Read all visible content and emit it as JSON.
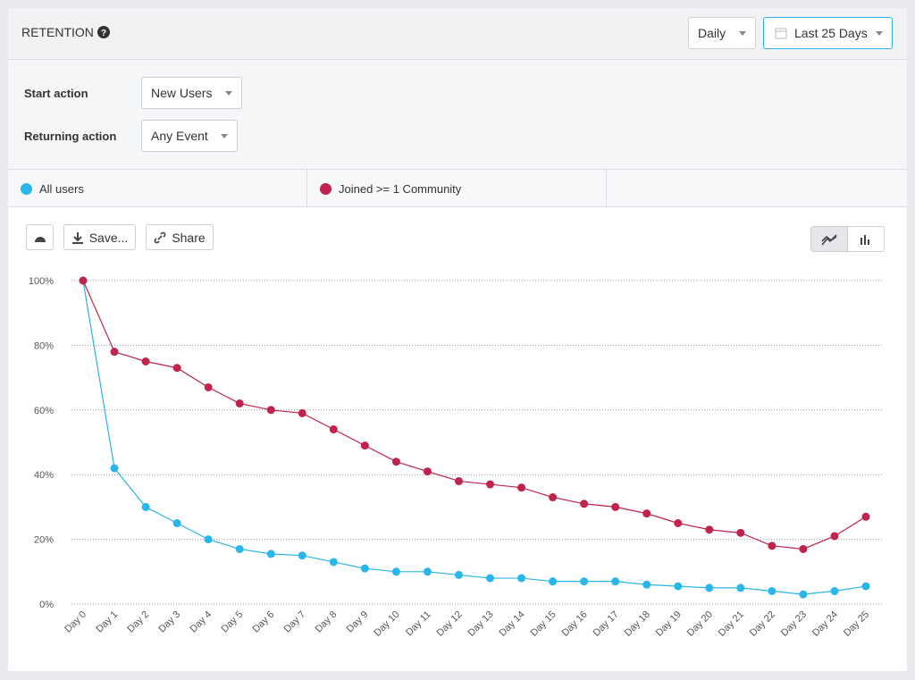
{
  "header": {
    "title": "RETENTION",
    "interval": "Daily",
    "range": "Last 25 Days"
  },
  "controls": [
    {
      "label": "Start action",
      "value": "New Users"
    },
    {
      "label": "Returning action",
      "value": "Any Event"
    }
  ],
  "toolbar": {
    "save": "Save...",
    "share": "Share"
  },
  "chart_data": {
    "type": "line",
    "categories": [
      "Day 0",
      "Day 1",
      "Day 2",
      "Day 3",
      "Day 4",
      "Day 5",
      "Day 6",
      "Day 7",
      "Day 8",
      "Day 9",
      "Day 10",
      "Day 11",
      "Day 12",
      "Day 13",
      "Day 14",
      "Day 15",
      "Day 16",
      "Day 17",
      "Day 18",
      "Day 19",
      "Day 20",
      "Day 21",
      "Day 22",
      "Day 23",
      "Day 24",
      "Day 25"
    ],
    "series": [
      {
        "name": "All users",
        "color": "#29b6e8",
        "values": [
          100,
          42,
          30,
          25,
          20,
          17,
          15.5,
          15,
          13,
          11,
          10,
          10,
          9,
          8,
          8,
          7,
          7,
          7,
          6,
          5.5,
          5,
          5,
          4,
          3,
          4,
          5.5
        ]
      },
      {
        "name": "Joined >= 1 Community",
        "color": "#c0234b",
        "values": [
          100,
          78,
          75,
          73,
          67,
          62,
          60,
          59,
          54,
          49,
          44,
          41,
          38,
          37,
          36,
          33,
          31,
          30,
          28,
          25,
          23,
          22,
          18,
          17,
          21,
          27
        ]
      }
    ],
    "ylim": [
      0,
      100
    ],
    "yticks": [
      {
        "value": 0,
        "label": "0%"
      },
      {
        "value": 20,
        "label": "20%"
      },
      {
        "value": 40,
        "label": "40%"
      },
      {
        "value": 60,
        "label": "60%"
      },
      {
        "value": 80,
        "label": "80%"
      },
      {
        "value": 100,
        "label": "100%"
      }
    ],
    "grid": true
  }
}
